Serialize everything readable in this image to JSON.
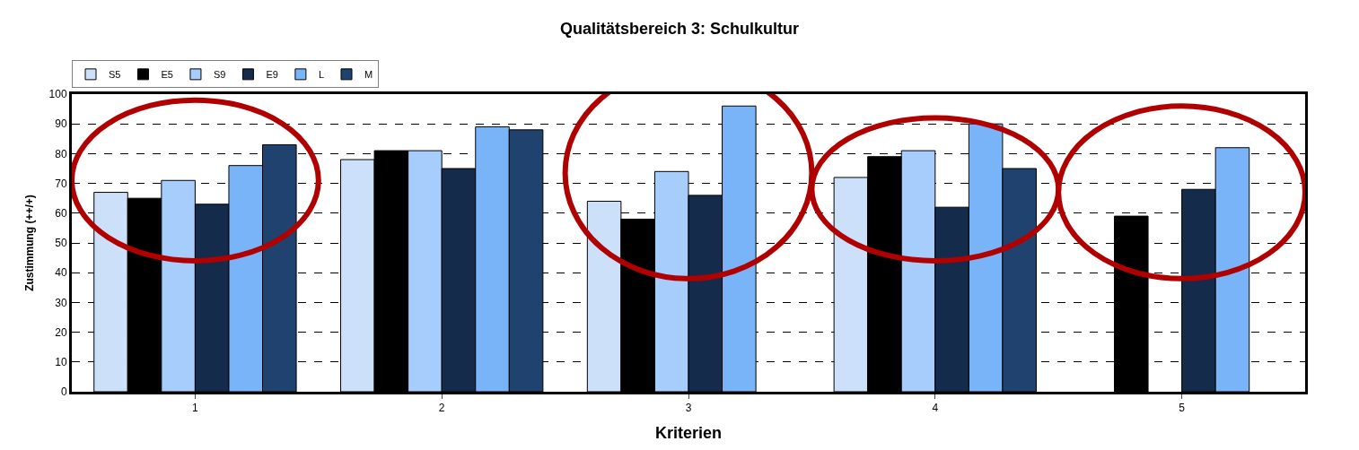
{
  "chart_data": {
    "type": "bar",
    "title": "Qualitätsbereich 3: Schulkultur",
    "xlabel": "Kriterien",
    "ylabel": "Zustimmung (++/+)",
    "categories": [
      "1",
      "2",
      "3",
      "4",
      "5"
    ],
    "series": [
      {
        "name": "S5",
        "color": "#cce0fa",
        "values": [
          67,
          78,
          64,
          72,
          null
        ]
      },
      {
        "name": "E5",
        "color": "#000000",
        "values": [
          65,
          81,
          58,
          79,
          59
        ]
      },
      {
        "name": "S9",
        "color": "#a6cdfb",
        "values": [
          71,
          81,
          74,
          81,
          null
        ]
      },
      {
        "name": "E9",
        "color": "#142b4c",
        "values": [
          63,
          75,
          66,
          62,
          68
        ]
      },
      {
        "name": "L",
        "color": "#7ab4f8",
        "values": [
          76,
          89,
          96,
          90,
          82
        ]
      },
      {
        "name": "M",
        "color": "#20426f",
        "values": [
          83,
          88,
          null,
          75,
          null
        ]
      }
    ],
    "ylim": [
      0,
      100
    ],
    "yticks": [
      0,
      10,
      20,
      30,
      40,
      50,
      60,
      70,
      80,
      90,
      100
    ],
    "grid": "y",
    "legend": "top left"
  }
}
